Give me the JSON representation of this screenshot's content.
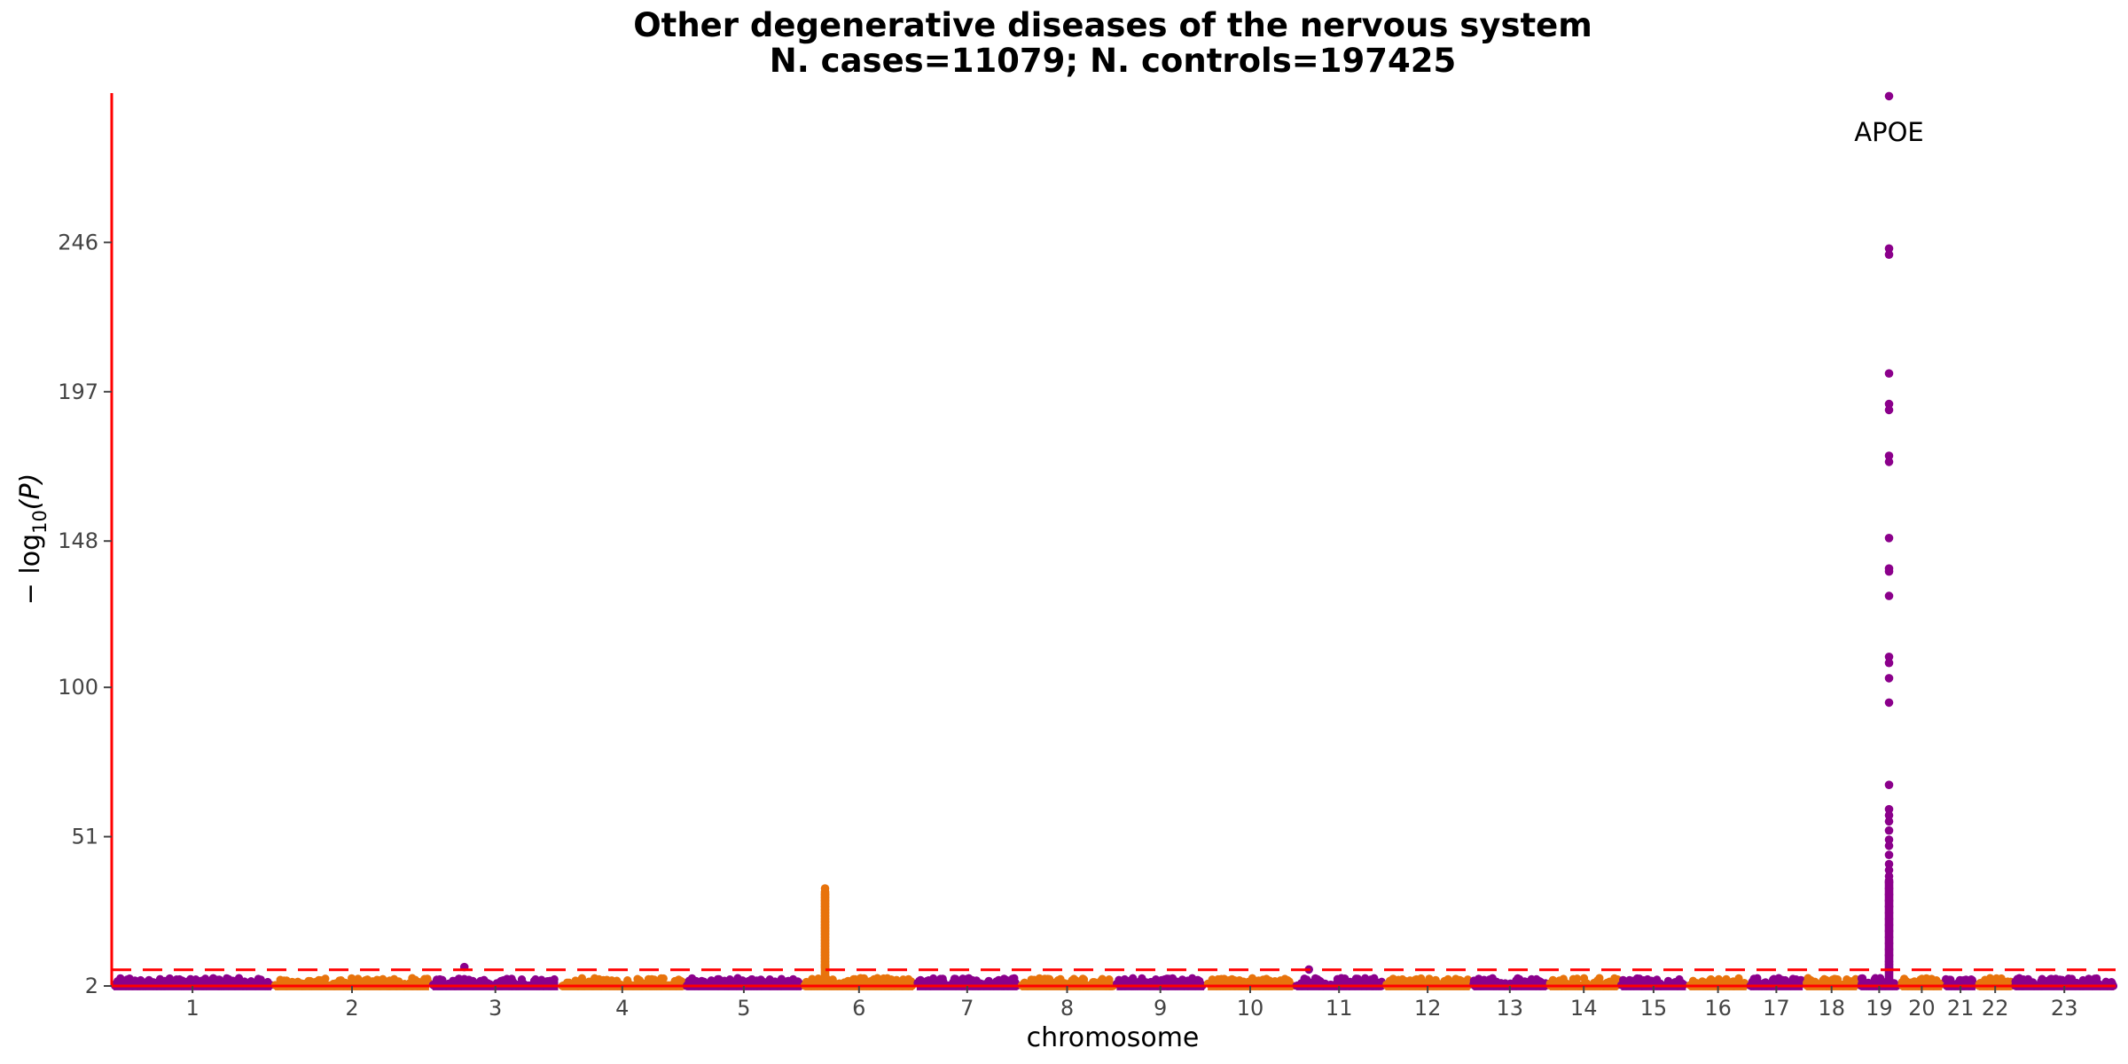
{
  "chart_data": {
    "type": "scatter",
    "title": "Other degenerative diseases of the nervous system",
    "subtitle": "N. cases=11079; N. controls=197425",
    "xlabel": "chromosome",
    "ylabel_prefix": "− log",
    "ylabel_sub": "10",
    "ylabel_suffix": "(P)",
    "ylim": [
      2,
      295
    ],
    "yticks": [
      "2",
      "51",
      "100",
      "148",
      "197",
      "246"
    ],
    "yticks_values": [
      2,
      51,
      100,
      148,
      197,
      246
    ],
    "significance_threshold": 7.3,
    "colors": {
      "odd": "#8B008B",
      "even": "#E8730C",
      "axis": "#FF0000",
      "threshold": "#FF0000"
    },
    "chromosomes": [
      {
        "label": "1",
        "size": 249
      },
      {
        "label": "2",
        "size": 243
      },
      {
        "label": "3",
        "size": 198
      },
      {
        "label": "4",
        "size": 191
      },
      {
        "label": "5",
        "size": 181
      },
      {
        "label": "6",
        "size": 171
      },
      {
        "label": "7",
        "size": 159
      },
      {
        "label": "8",
        "size": 145
      },
      {
        "label": "9",
        "size": 138
      },
      {
        "label": "10",
        "size": 134
      },
      {
        "label": "11",
        "size": 135
      },
      {
        "label": "12",
        "size": 133
      },
      {
        "label": "13",
        "size": 115
      },
      {
        "label": "14",
        "size": 107
      },
      {
        "label": "15",
        "size": 102
      },
      {
        "label": "16",
        "size": 90
      },
      {
        "label": "17",
        "size": 83
      },
      {
        "label": "18",
        "size": 80
      },
      {
        "label": "19",
        "size": 59
      },
      {
        "label": "20",
        "size": 64
      },
      {
        "label": "21",
        "size": 47
      },
      {
        "label": "22",
        "size": 51
      },
      {
        "label": "23",
        "size": 156
      }
    ],
    "peaks": [
      {
        "chrom": "6",
        "pos": 32,
        "values": [
          34,
          33,
          32,
          31,
          30,
          29,
          28,
          27,
          26,
          25,
          24,
          23,
          22,
          21,
          20,
          19,
          18,
          17,
          16,
          15,
          14,
          13,
          12,
          11,
          10,
          9,
          8.5,
          8
        ]
      },
      {
        "chrom": "19",
        "pos": 45,
        "values": [
          294,
          244,
          242,
          203,
          193,
          191,
          176,
          174,
          149,
          139,
          138,
          130,
          110,
          108,
          103,
          95,
          68,
          60,
          58,
          56,
          53,
          50,
          48,
          45,
          42,
          40,
          38,
          36,
          34,
          32,
          30,
          28,
          26,
          24,
          22,
          20,
          18,
          16,
          14,
          12,
          10,
          9,
          8
        ]
      },
      {
        "chrom": "3",
        "pos": 50,
        "values": [
          8.2
        ]
      },
      {
        "chrom": "11",
        "pos": 20,
        "values": [
          7.4
        ]
      }
    ],
    "annotations": [
      {
        "text": "APOE",
        "chrom": "19",
        "pos": 45,
        "y": 290
      }
    ]
  }
}
